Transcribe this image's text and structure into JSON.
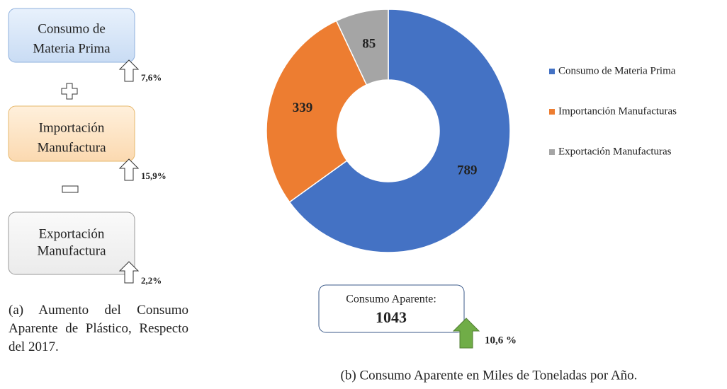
{
  "chart_data": {
    "type": "pie",
    "donut": true,
    "categories": [
      "Consumo de Materia Prima",
      "Importanción Manufacturas",
      "Exportación Manufacturas"
    ],
    "values": [
      789,
      339,
      85
    ],
    "colors": [
      "#4472c4",
      "#ed7d31",
      "#a5a5a5"
    ],
    "legend": "right",
    "callout": {
      "title": "Consumo Aparente:",
      "value": "1043",
      "change": "10,6 %"
    },
    "caption": "(b) Consumo Aparente en Miles de Toneladas por Año."
  },
  "diagram": {
    "boxes": [
      {
        "label": [
          "Consumo de",
          "Materia Prima"
        ],
        "change": "7,6%"
      },
      {
        "label": [
          "Importación",
          "Manufactura"
        ],
        "change": "15,9%"
      },
      {
        "label": [
          "Exportación",
          "Manufactura"
        ],
        "change": "2,2%"
      }
    ],
    "caption": "(a) Aumento del Consumo Aparente de Plástico, Respecto del 2017."
  }
}
